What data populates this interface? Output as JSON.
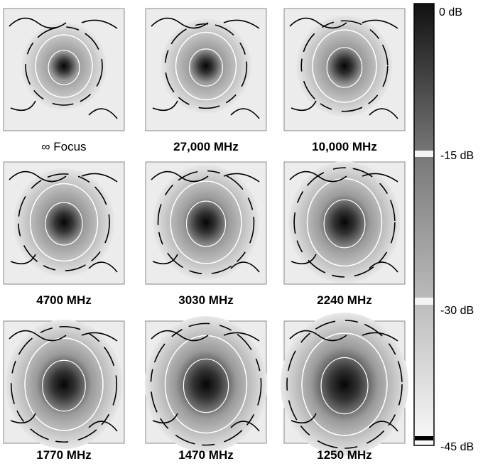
{
  "panels": [
    {
      "label": "∞ Focus"
    },
    {
      "label": "27,000 MHz"
    },
    {
      "label": "10,000 MHz"
    },
    {
      "label": "4700 MHz"
    },
    {
      "label": "3030 MHz"
    },
    {
      "label": "2240 MHz"
    },
    {
      "label": "1770 MHz"
    },
    {
      "label": "1470 MHz"
    },
    {
      "label": "1250 MHz"
    }
  ],
  "colorbar": {
    "labels": [
      "0 dB",
      "-15 dB",
      "-30 dB",
      "-45 dB"
    ]
  }
}
